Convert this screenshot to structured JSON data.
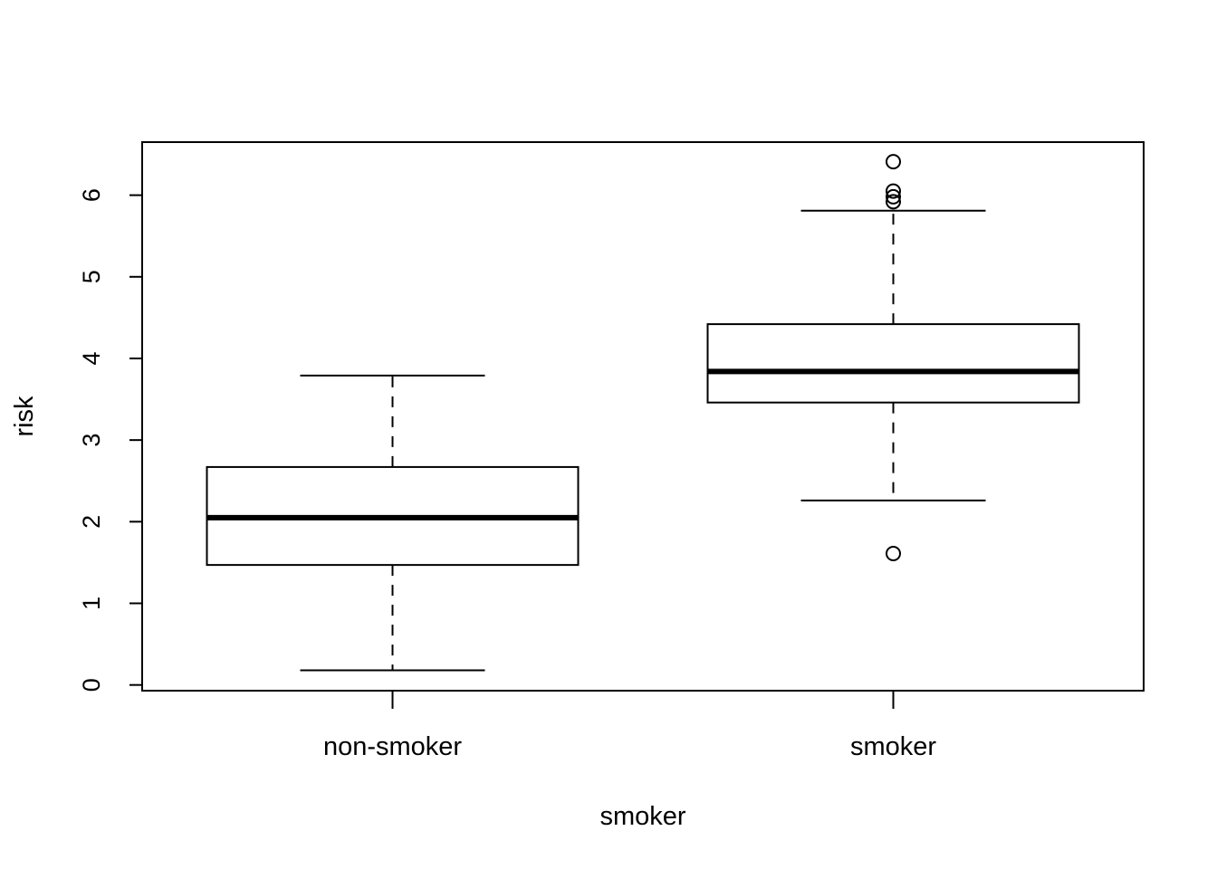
{
  "chart_data": {
    "type": "boxplot",
    "xlabel": "smoker",
    "ylabel": "risk",
    "ylim": [
      -0.07,
      6.65
    ],
    "yticks": [
      "0",
      "1",
      "2",
      "3",
      "4",
      "5",
      "6"
    ],
    "categories": [
      "non-smoker",
      "smoker"
    ],
    "boxes": [
      {
        "category": "non-smoker",
        "whisker_low": 0.18,
        "q1": 1.47,
        "median": 2.05,
        "q3": 2.67,
        "whisker_high": 3.79,
        "outliers": []
      },
      {
        "category": "smoker",
        "whisker_low": 2.26,
        "q1": 3.46,
        "median": 3.84,
        "q3": 4.42,
        "whisker_high": 5.81,
        "outliers": [
          6.41,
          6.05,
          5.98,
          5.92,
          1.61
        ]
      }
    ],
    "grid": false,
    "legend": "none"
  }
}
